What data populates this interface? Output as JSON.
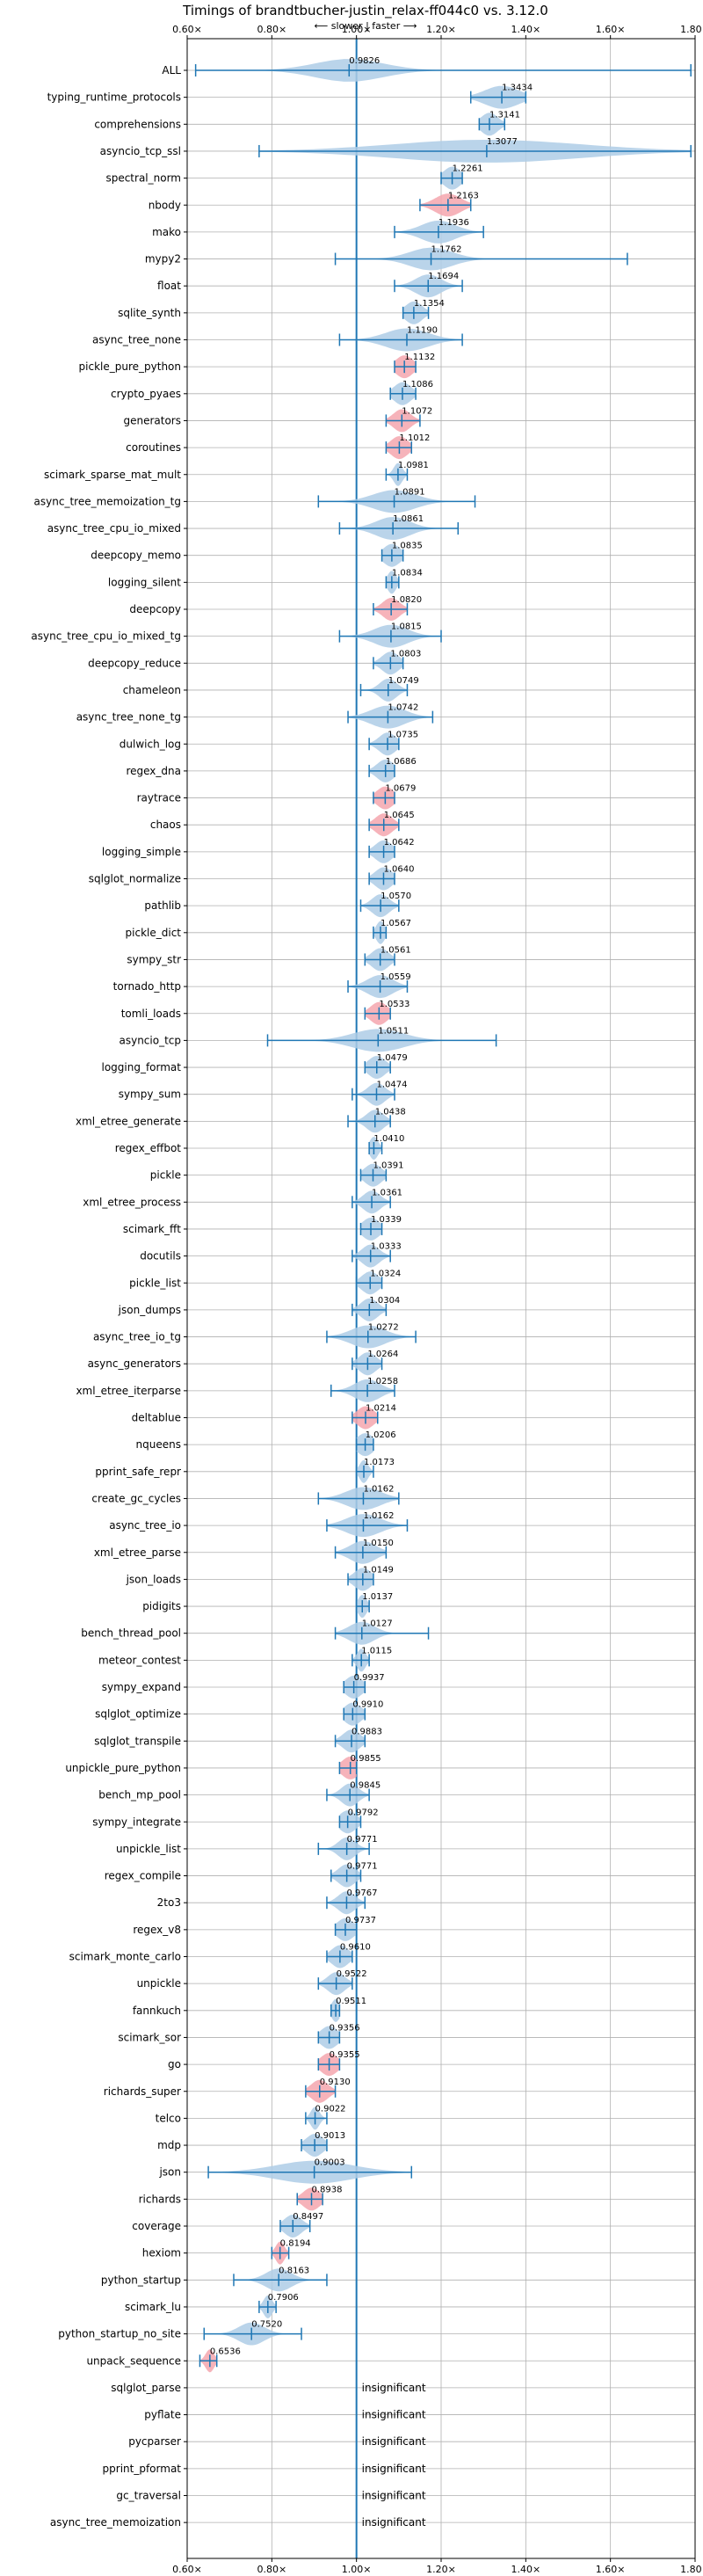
{
  "chart_data": {
    "type": "violin",
    "title": "Timings of brandtbucher-justin_relax-ff044c0 vs. 3.12.0",
    "direction_hint": "⟵ slower | faster ⟶",
    "xlabel": "",
    "ylabel": "",
    "xlim": [
      0.6,
      1.8
    ],
    "xticks": [
      0.6,
      0.8,
      1.0,
      1.2,
      1.4,
      1.6,
      1.8
    ],
    "xtick_labels": [
      "0.60×",
      "0.80×",
      "1.00×",
      "1.20×",
      "1.40×",
      "1.60×",
      "1.80×"
    ],
    "reference_line": 1.0,
    "grid": true,
    "insignificant_label": "insignificant",
    "colors": {
      "violin": "#aecde6",
      "violin_highlight": "#f4a6ae",
      "line": "#1f77b4",
      "grid": "#b0b0b0"
    },
    "benchmarks": [
      {
        "name": "ALL",
        "value": 0.9826,
        "min": 0.62,
        "max": 1.79,
        "spread": 0.08,
        "highlight": false
      },
      {
        "name": "typing_runtime_protocols",
        "value": 1.3434,
        "min": 1.27,
        "max": 1.4,
        "spread": 0.04,
        "highlight": false
      },
      {
        "name": "comprehensions",
        "value": 1.3141,
        "min": 1.29,
        "max": 1.35,
        "spread": 0.02,
        "highlight": false
      },
      {
        "name": "asyncio_tcp_ssl",
        "value": 1.3077,
        "min": 0.77,
        "max": 1.79,
        "spread": 0.22,
        "highlight": false
      },
      {
        "name": "spectral_norm",
        "value": 1.2261,
        "min": 1.2,
        "max": 1.25,
        "spread": 0.02,
        "highlight": false
      },
      {
        "name": "nbody",
        "value": 1.2163,
        "min": 1.15,
        "max": 1.27,
        "spread": 0.03,
        "highlight": true
      },
      {
        "name": "mako",
        "value": 1.1936,
        "min": 1.09,
        "max": 1.3,
        "spread": 0.04,
        "highlight": false
      },
      {
        "name": "mypy2",
        "value": 1.1762,
        "min": 0.95,
        "max": 1.64,
        "spread": 0.05,
        "highlight": false
      },
      {
        "name": "float",
        "value": 1.1694,
        "min": 1.09,
        "max": 1.25,
        "spread": 0.03,
        "highlight": false
      },
      {
        "name": "sqlite_synth",
        "value": 1.1354,
        "min": 1.11,
        "max": 1.17,
        "spread": 0.02,
        "highlight": false
      },
      {
        "name": "async_tree_none",
        "value": 1.119,
        "min": 0.96,
        "max": 1.25,
        "spread": 0.05,
        "highlight": false
      },
      {
        "name": "pickle_pure_python",
        "value": 1.1132,
        "min": 1.09,
        "max": 1.14,
        "spread": 0.02,
        "highlight": true
      },
      {
        "name": "crypto_pyaes",
        "value": 1.1086,
        "min": 1.08,
        "max": 1.14,
        "spread": 0.02,
        "highlight": false
      },
      {
        "name": "generators",
        "value": 1.1072,
        "min": 1.07,
        "max": 1.15,
        "spread": 0.02,
        "highlight": true
      },
      {
        "name": "coroutines",
        "value": 1.1012,
        "min": 1.07,
        "max": 1.13,
        "spread": 0.02,
        "highlight": true
      },
      {
        "name": "scimark_sparse_mat_mult",
        "value": 1.0981,
        "min": 1.07,
        "max": 1.12,
        "spread": 0.01,
        "highlight": false
      },
      {
        "name": "async_tree_memoization_tg",
        "value": 1.0891,
        "min": 0.91,
        "max": 1.28,
        "spread": 0.05,
        "highlight": false
      },
      {
        "name": "async_tree_cpu_io_mixed",
        "value": 1.0861,
        "min": 0.96,
        "max": 1.24,
        "spread": 0.04,
        "highlight": false
      },
      {
        "name": "deepcopy_memo",
        "value": 1.0835,
        "min": 1.06,
        "max": 1.11,
        "spread": 0.02,
        "highlight": false
      },
      {
        "name": "logging_silent",
        "value": 1.0834,
        "min": 1.07,
        "max": 1.1,
        "spread": 0.01,
        "highlight": false
      },
      {
        "name": "deepcopy",
        "value": 1.082,
        "min": 1.04,
        "max": 1.12,
        "spread": 0.02,
        "highlight": true
      },
      {
        "name": "async_tree_cpu_io_mixed_tg",
        "value": 1.0815,
        "min": 0.96,
        "max": 1.2,
        "spread": 0.04,
        "highlight": false
      },
      {
        "name": "deepcopy_reduce",
        "value": 1.0803,
        "min": 1.04,
        "max": 1.11,
        "spread": 0.02,
        "highlight": false
      },
      {
        "name": "chameleon",
        "value": 1.0749,
        "min": 1.01,
        "max": 1.12,
        "spread": 0.02,
        "highlight": false
      },
      {
        "name": "async_tree_none_tg",
        "value": 1.0742,
        "min": 0.98,
        "max": 1.18,
        "spread": 0.04,
        "highlight": false
      },
      {
        "name": "dulwich_log",
        "value": 1.0735,
        "min": 1.03,
        "max": 1.1,
        "spread": 0.02,
        "highlight": false
      },
      {
        "name": "regex_dna",
        "value": 1.0686,
        "min": 1.03,
        "max": 1.09,
        "spread": 0.02,
        "highlight": false
      },
      {
        "name": "raytrace",
        "value": 1.0679,
        "min": 1.04,
        "max": 1.09,
        "spread": 0.02,
        "highlight": true
      },
      {
        "name": "chaos",
        "value": 1.0645,
        "min": 1.03,
        "max": 1.1,
        "spread": 0.02,
        "highlight": true
      },
      {
        "name": "logging_simple",
        "value": 1.0642,
        "min": 1.03,
        "max": 1.09,
        "spread": 0.02,
        "highlight": false
      },
      {
        "name": "sqlglot_normalize",
        "value": 1.064,
        "min": 1.03,
        "max": 1.09,
        "spread": 0.02,
        "highlight": false
      },
      {
        "name": "pathlib",
        "value": 1.057,
        "min": 1.01,
        "max": 1.1,
        "spread": 0.02,
        "highlight": false
      },
      {
        "name": "pickle_dict",
        "value": 1.0567,
        "min": 1.04,
        "max": 1.07,
        "spread": 0.01,
        "highlight": false
      },
      {
        "name": "sympy_str",
        "value": 1.0561,
        "min": 1.02,
        "max": 1.09,
        "spread": 0.02,
        "highlight": false
      },
      {
        "name": "tornado_http",
        "value": 1.0559,
        "min": 0.98,
        "max": 1.12,
        "spread": 0.03,
        "highlight": false
      },
      {
        "name": "tomli_loads",
        "value": 1.0533,
        "min": 1.02,
        "max": 1.08,
        "spread": 0.02,
        "highlight": true
      },
      {
        "name": "asyncio_tcp",
        "value": 1.0511,
        "min": 0.79,
        "max": 1.33,
        "spread": 0.06,
        "highlight": false
      },
      {
        "name": "logging_format",
        "value": 1.0479,
        "min": 1.02,
        "max": 1.08,
        "spread": 0.02,
        "highlight": false
      },
      {
        "name": "sympy_sum",
        "value": 1.0474,
        "min": 0.99,
        "max": 1.09,
        "spread": 0.02,
        "highlight": false
      },
      {
        "name": "xml_etree_generate",
        "value": 1.0438,
        "min": 0.98,
        "max": 1.08,
        "spread": 0.02,
        "highlight": false
      },
      {
        "name": "regex_effbot",
        "value": 1.041,
        "min": 1.03,
        "max": 1.06,
        "spread": 0.01,
        "highlight": false
      },
      {
        "name": "pickle",
        "value": 1.0391,
        "min": 1.01,
        "max": 1.07,
        "spread": 0.02,
        "highlight": false
      },
      {
        "name": "xml_etree_process",
        "value": 1.0361,
        "min": 0.99,
        "max": 1.08,
        "spread": 0.02,
        "highlight": false
      },
      {
        "name": "scimark_fft",
        "value": 1.0339,
        "min": 1.01,
        "max": 1.06,
        "spread": 0.02,
        "highlight": false
      },
      {
        "name": "docutils",
        "value": 1.0333,
        "min": 0.99,
        "max": 1.08,
        "spread": 0.02,
        "highlight": false
      },
      {
        "name": "pickle_list",
        "value": 1.0324,
        "min": 1.0,
        "max": 1.06,
        "spread": 0.02,
        "highlight": false
      },
      {
        "name": "json_dumps",
        "value": 1.0304,
        "min": 0.99,
        "max": 1.07,
        "spread": 0.02,
        "highlight": false
      },
      {
        "name": "async_tree_io_tg",
        "value": 1.0272,
        "min": 0.93,
        "max": 1.14,
        "spread": 0.04,
        "highlight": false
      },
      {
        "name": "async_generators",
        "value": 1.0264,
        "min": 0.99,
        "max": 1.06,
        "spread": 0.02,
        "highlight": false
      },
      {
        "name": "xml_etree_iterparse",
        "value": 1.0258,
        "min": 0.94,
        "max": 1.09,
        "spread": 0.03,
        "highlight": false
      },
      {
        "name": "deltablue",
        "value": 1.0214,
        "min": 0.99,
        "max": 1.05,
        "spread": 0.02,
        "highlight": true
      },
      {
        "name": "nqueens",
        "value": 1.0206,
        "min": 1.0,
        "max": 1.04,
        "spread": 0.02,
        "highlight": false
      },
      {
        "name": "pprint_safe_repr",
        "value": 1.0173,
        "min": 1.0,
        "max": 1.04,
        "spread": 0.01,
        "highlight": false
      },
      {
        "name": "create_gc_cycles",
        "value": 1.0162,
        "min": 0.91,
        "max": 1.1,
        "spread": 0.04,
        "highlight": false
      },
      {
        "name": "async_tree_io",
        "value": 1.0162,
        "min": 0.93,
        "max": 1.12,
        "spread": 0.04,
        "highlight": false
      },
      {
        "name": "xml_etree_parse",
        "value": 1.015,
        "min": 0.95,
        "max": 1.07,
        "spread": 0.03,
        "highlight": false
      },
      {
        "name": "json_loads",
        "value": 1.0149,
        "min": 0.98,
        "max": 1.04,
        "spread": 0.02,
        "highlight": false
      },
      {
        "name": "pidigits",
        "value": 1.0137,
        "min": 1.0,
        "max": 1.03,
        "spread": 0.01,
        "highlight": false
      },
      {
        "name": "bench_thread_pool",
        "value": 1.0127,
        "min": 0.95,
        "max": 1.17,
        "spread": 0.03,
        "highlight": false
      },
      {
        "name": "meteor_contest",
        "value": 1.0115,
        "min": 0.99,
        "max": 1.03,
        "spread": 0.01,
        "highlight": false
      },
      {
        "name": "sympy_expand",
        "value": 0.9937,
        "min": 0.97,
        "max": 1.02,
        "spread": 0.02,
        "highlight": false
      },
      {
        "name": "sqlglot_optimize",
        "value": 0.991,
        "min": 0.97,
        "max": 1.02,
        "spread": 0.02,
        "highlight": false
      },
      {
        "name": "sqlglot_transpile",
        "value": 0.9883,
        "min": 0.95,
        "max": 1.02,
        "spread": 0.02,
        "highlight": false
      },
      {
        "name": "unpickle_pure_python",
        "value": 0.9855,
        "min": 0.96,
        "max": 1.0,
        "spread": 0.02,
        "highlight": true
      },
      {
        "name": "bench_mp_pool",
        "value": 0.9845,
        "min": 0.93,
        "max": 1.03,
        "spread": 0.02,
        "highlight": false
      },
      {
        "name": "sympy_integrate",
        "value": 0.9792,
        "min": 0.96,
        "max": 1.01,
        "spread": 0.02,
        "highlight": false
      },
      {
        "name": "unpickle_list",
        "value": 0.9771,
        "min": 0.91,
        "max": 1.03,
        "spread": 0.02,
        "highlight": false
      },
      {
        "name": "regex_compile",
        "value": 0.9771,
        "min": 0.94,
        "max": 1.01,
        "spread": 0.02,
        "highlight": false
      },
      {
        "name": "2to3",
        "value": 0.9767,
        "min": 0.93,
        "max": 1.02,
        "spread": 0.02,
        "highlight": false
      },
      {
        "name": "regex_v8",
        "value": 0.9737,
        "min": 0.95,
        "max": 1.0,
        "spread": 0.02,
        "highlight": false
      },
      {
        "name": "scimark_monte_carlo",
        "value": 0.961,
        "min": 0.93,
        "max": 0.99,
        "spread": 0.02,
        "highlight": false
      },
      {
        "name": "unpickle",
        "value": 0.9522,
        "min": 0.91,
        "max": 0.99,
        "spread": 0.02,
        "highlight": false
      },
      {
        "name": "fannkuch",
        "value": 0.9511,
        "min": 0.94,
        "max": 0.96,
        "spread": 0.01,
        "highlight": false
      },
      {
        "name": "scimark_sor",
        "value": 0.9356,
        "min": 0.91,
        "max": 0.96,
        "spread": 0.02,
        "highlight": false
      },
      {
        "name": "go",
        "value": 0.9355,
        "min": 0.91,
        "max": 0.96,
        "spread": 0.02,
        "highlight": true
      },
      {
        "name": "richards_super",
        "value": 0.913,
        "min": 0.88,
        "max": 0.95,
        "spread": 0.02,
        "highlight": true
      },
      {
        "name": "telco",
        "value": 0.9022,
        "min": 0.88,
        "max": 0.93,
        "spread": 0.01,
        "highlight": false
      },
      {
        "name": "mdp",
        "value": 0.9013,
        "min": 0.87,
        "max": 0.93,
        "spread": 0.02,
        "highlight": false
      },
      {
        "name": "json",
        "value": 0.9003,
        "min": 0.65,
        "max": 1.13,
        "spread": 0.09,
        "highlight": false
      },
      {
        "name": "richards",
        "value": 0.8938,
        "min": 0.86,
        "max": 0.92,
        "spread": 0.02,
        "highlight": true
      },
      {
        "name": "coverage",
        "value": 0.8497,
        "min": 0.82,
        "max": 0.89,
        "spread": 0.02,
        "highlight": false
      },
      {
        "name": "hexiom",
        "value": 0.8194,
        "min": 0.8,
        "max": 0.84,
        "spread": 0.01,
        "highlight": true
      },
      {
        "name": "python_startup",
        "value": 0.8163,
        "min": 0.71,
        "max": 0.93,
        "spread": 0.03,
        "highlight": false
      },
      {
        "name": "scimark_lu",
        "value": 0.7906,
        "min": 0.77,
        "max": 0.81,
        "spread": 0.01,
        "highlight": false
      },
      {
        "name": "python_startup_no_site",
        "value": 0.752,
        "min": 0.64,
        "max": 0.87,
        "spread": 0.03,
        "highlight": false
      },
      {
        "name": "unpack_sequence",
        "value": 0.6536,
        "min": 0.63,
        "max": 0.67,
        "spread": 0.01,
        "highlight": true
      },
      {
        "name": "sqlglot_parse",
        "value": null,
        "insignificant": true
      },
      {
        "name": "pyflate",
        "value": null,
        "insignificant": true
      },
      {
        "name": "pycparser",
        "value": null,
        "insignificant": true
      },
      {
        "name": "pprint_pformat",
        "value": null,
        "insignificant": true
      },
      {
        "name": "gc_traversal",
        "value": null,
        "insignificant": true
      },
      {
        "name": "async_tree_memoization",
        "value": null,
        "insignificant": true
      }
    ]
  }
}
